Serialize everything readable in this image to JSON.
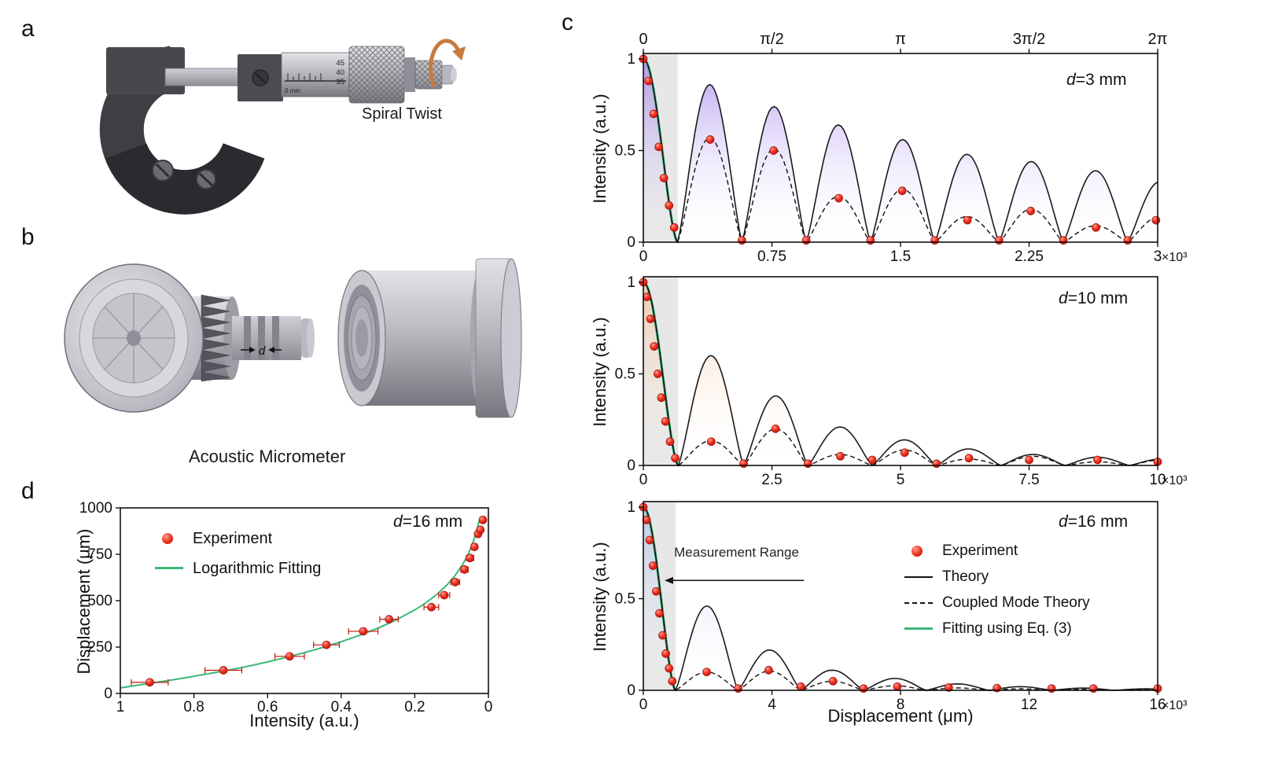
{
  "figure_bg": "#ffffff",
  "panel_a": {
    "label": "a",
    "caption": "Spiral Twist",
    "sleeve_markings": [
      "45",
      "40",
      "35"
    ],
    "sleeve_unit": "0 mm"
  },
  "panel_b": {
    "label": "b",
    "caption": "Acoustic Micrometer",
    "gap_label": "d"
  },
  "panel_c": {
    "label": "c",
    "ylabel": "Intensity (a.u.)",
    "xlabel": "Displacement (μm)"
  },
  "panel_d": {
    "label": "d",
    "ylabel": "Displacement (μm)",
    "xlabel": "Intensity (a.u.)"
  },
  "colors": {
    "experiment": "#ee2d1e",
    "theory": "#1a1a1a",
    "coupled": "#111111",
    "fit_green": "#3cb878",
    "grad_c1": "#8a63e8",
    "grad_c2": "#f5b98a",
    "grad_c3": "#9fb6e8",
    "shade": "#e7e7e7",
    "twist_arrow": "#c47c41"
  },
  "chart_data": [
    {
      "id": "c1",
      "type": "line",
      "annotation": {
        "var": "d",
        "rest": "=3 mm"
      },
      "xlim": [
        0,
        3
      ],
      "ylim": [
        0,
        1.03
      ],
      "x_ticks": [
        "0",
        "0.75",
        "1.5",
        "2.25",
        "3"
      ],
      "x_tick_vals": [
        0,
        0.75,
        1.5,
        2.25,
        3
      ],
      "x_scale": "×10³",
      "top_ticks": [
        "0",
        "π/2",
        "π",
        "3π/2",
        "2π"
      ],
      "top_tick_vals": [
        0,
        0.75,
        1.5,
        2.25,
        3
      ],
      "y_ticks": [
        "1",
        "0.5",
        "0"
      ],
      "y_tick_vals": [
        1,
        0.5,
        0
      ],
      "shade_end": 0.2,
      "first_zero": 0.2,
      "theory_humps": {
        "zeros": [
          0.2,
          0.575,
          0.95,
          1.325,
          1.7,
          2.075,
          2.45,
          2.825,
          3.2
        ],
        "peaks": [
          0.86,
          0.74,
          0.64,
          0.56,
          0.48,
          0.44,
          0.39,
          0.33
        ]
      },
      "coupled_humps": {
        "zeros": [
          0.2,
          0.575,
          0.95,
          1.325,
          1.7,
          2.075,
          2.45,
          2.825,
          3.2
        ],
        "peaks": [
          0.57,
          0.51,
          0.25,
          0.29,
          0.14,
          0.18,
          0.09,
          0.14
        ]
      },
      "experiment": [
        [
          0,
          1
        ],
        [
          0.03,
          0.88
        ],
        [
          0.06,
          0.7
        ],
        [
          0.09,
          0.52
        ],
        [
          0.12,
          0.35
        ],
        [
          0.15,
          0.2
        ],
        [
          0.18,
          0.08
        ],
        [
          0.39,
          0.56
        ],
        [
          0.575,
          0.01
        ],
        [
          0.76,
          0.5
        ],
        [
          0.95,
          0.01
        ],
        [
          1.14,
          0.24
        ],
        [
          1.325,
          0.01
        ],
        [
          1.51,
          0.28
        ],
        [
          1.7,
          0.01
        ],
        [
          1.89,
          0.12
        ],
        [
          2.075,
          0.01
        ],
        [
          2.26,
          0.17
        ],
        [
          2.45,
          0.01
        ],
        [
          2.64,
          0.08
        ],
        [
          2.825,
          0.01
        ],
        [
          2.99,
          0.12
        ]
      ]
    },
    {
      "id": "c2",
      "type": "line",
      "annotation": {
        "var": "d",
        "rest": "=10 mm"
      },
      "xlim": [
        0,
        10
      ],
      "ylim": [
        0,
        1.03
      ],
      "x_ticks": [
        "0",
        "2.5",
        "5",
        "7.5",
        "10"
      ],
      "x_tick_vals": [
        0,
        2.5,
        5,
        7.5,
        10
      ],
      "x_scale": "×10³",
      "y_ticks": [
        "1",
        "0.5",
        "0"
      ],
      "y_tick_vals": [
        1,
        0.5,
        0
      ],
      "shade_end": 0.68,
      "first_zero": 0.68,
      "theory_humps": {
        "zeros": [
          0.68,
          1.95,
          3.2,
          4.45,
          5.7,
          6.95,
          8.2,
          9.45,
          10.7
        ],
        "peaks": [
          0.6,
          0.38,
          0.21,
          0.14,
          0.09,
          0.06,
          0.045,
          0.035
        ]
      },
      "coupled_humps": {
        "zeros": [
          0.68,
          1.95,
          3.2,
          4.45,
          5.7,
          6.95,
          8.2,
          9.45,
          10.7
        ],
        "peaks": [
          0.135,
          0.2,
          0.06,
          0.085,
          0.035,
          0.05,
          0.02,
          0.03
        ]
      },
      "experiment": [
        [
          0,
          1
        ],
        [
          0.07,
          0.92
        ],
        [
          0.14,
          0.8
        ],
        [
          0.21,
          0.65
        ],
        [
          0.28,
          0.5
        ],
        [
          0.35,
          0.37
        ],
        [
          0.43,
          0.24
        ],
        [
          0.52,
          0.13
        ],
        [
          0.62,
          0.04
        ],
        [
          1.32,
          0.13
        ],
        [
          1.95,
          0.01
        ],
        [
          2.57,
          0.2
        ],
        [
          3.2,
          0.01
        ],
        [
          3.83,
          0.05
        ],
        [
          4.45,
          0.03
        ],
        [
          5.08,
          0.07
        ],
        [
          5.7,
          0.01
        ],
        [
          6.33,
          0.04
        ],
        [
          7.5,
          0.03
        ],
        [
          8.83,
          0.03
        ],
        [
          10,
          0.02
        ]
      ]
    },
    {
      "id": "c3",
      "type": "line",
      "annotation": {
        "var": "d",
        "rest": "=16 mm"
      },
      "xlabel": "Displacement (μm)",
      "xlim": [
        0,
        16
      ],
      "ylim": [
        0,
        1.03
      ],
      "x_ticks": [
        "0",
        "4",
        "8",
        "12",
        "16"
      ],
      "x_tick_vals": [
        0,
        4,
        8,
        12,
        16
      ],
      "x_scale": "×10³",
      "y_ticks": [
        "1",
        "0.5",
        "0"
      ],
      "y_tick_vals": [
        1,
        0.5,
        0
      ],
      "shade_end": 1.0,
      "first_zero": 1.0,
      "theory_humps": {
        "zeros": [
          1.0,
          2.95,
          4.9,
          6.85,
          8.8,
          10.75,
          12.7,
          14.65,
          16.6
        ],
        "peaks": [
          0.46,
          0.22,
          0.11,
          0.065,
          0.035,
          0.02,
          0.012,
          0.008
        ]
      },
      "coupled_humps": {
        "zeros": [
          1.0,
          2.95,
          4.9,
          6.85,
          8.8,
          10.75,
          12.7,
          14.65,
          16.6
        ],
        "peaks": [
          0.1,
          0.105,
          0.05,
          0.025,
          0.013,
          0.008,
          0.005,
          0.004
        ]
      },
      "experiment": [
        [
          0,
          1
        ],
        [
          0.1,
          0.93
        ],
        [
          0.2,
          0.82
        ],
        [
          0.3,
          0.68
        ],
        [
          0.4,
          0.54
        ],
        [
          0.5,
          0.42
        ],
        [
          0.6,
          0.3
        ],
        [
          0.7,
          0.2
        ],
        [
          0.8,
          0.12
        ],
        [
          0.9,
          0.05
        ],
        [
          1.97,
          0.1
        ],
        [
          2.95,
          0.01
        ],
        [
          3.9,
          0.11
        ],
        [
          4.9,
          0.02
        ],
        [
          5.9,
          0.05
        ],
        [
          6.85,
          0.01
        ],
        [
          7.9,
          0.02
        ],
        [
          9.5,
          0.015
        ],
        [
          11,
          0.012
        ],
        [
          12.7,
          0.01
        ],
        [
          14,
          0.01
        ],
        [
          16,
          0.01
        ]
      ],
      "legend": [
        {
          "label": "Experiment",
          "marker": "dot"
        },
        {
          "label": "Theory",
          "marker": "solid"
        },
        {
          "label": "Coupled Mode Theory",
          "marker": "dashed"
        },
        {
          "label": "Fitting using Eq. (3)",
          "marker": "green"
        }
      ],
      "range_annotation": {
        "text": "Measurement Range",
        "text_x": 2.9,
        "text_y": 0.73,
        "arrow_y": 0.6,
        "arrow_x0": 5.0,
        "arrow_x1": 0.66
      }
    },
    {
      "id": "d",
      "type": "scatter",
      "annotation": {
        "var": "d",
        "rest": "=16 mm"
      },
      "xlabel": "Intensity (a.u.)",
      "ylabel": "Displacement (μm)",
      "xlim": [
        1,
        0
      ],
      "ylim": [
        0,
        1000
      ],
      "x_ticks": [
        "1",
        "0.8",
        "0.6",
        "0.4",
        "0.2",
        "0"
      ],
      "x_tick_vals": [
        1,
        0.8,
        0.6,
        0.4,
        0.2,
        0
      ],
      "y_ticks": [
        "0",
        "250",
        "500",
        "750",
        "1000"
      ],
      "y_tick_vals": [
        0,
        250,
        500,
        750,
        1000
      ],
      "legend": [
        {
          "label": "Experiment",
          "marker": "dot"
        },
        {
          "label": "Logarithmic Fitting",
          "marker": "green"
        }
      ],
      "fit_curve": [
        [
          1,
          30
        ],
        [
          0.95,
          45
        ],
        [
          0.9,
          60
        ],
        [
          0.85,
          76
        ],
        [
          0.8,
          93
        ],
        [
          0.75,
          110
        ],
        [
          0.7,
          128
        ],
        [
          0.65,
          148
        ],
        [
          0.6,
          170
        ],
        [
          0.55,
          194
        ],
        [
          0.5,
          220
        ],
        [
          0.45,
          248
        ],
        [
          0.4,
          279
        ],
        [
          0.35,
          313
        ],
        [
          0.3,
          352
        ],
        [
          0.25,
          397
        ],
        [
          0.2,
          450
        ],
        [
          0.17,
          488
        ],
        [
          0.14,
          534
        ],
        [
          0.11,
          590
        ],
        [
          0.09,
          637
        ],
        [
          0.07,
          695
        ],
        [
          0.055,
          750
        ],
        [
          0.045,
          797
        ],
        [
          0.035,
          855
        ],
        [
          0.028,
          907
        ],
        [
          0.022,
          950
        ]
      ],
      "experiment": [
        [
          0.92,
          60,
          0.05
        ],
        [
          0.72,
          125,
          0.05
        ],
        [
          0.54,
          200,
          0.04
        ],
        [
          0.44,
          262,
          0.035
        ],
        [
          0.34,
          335,
          0.04
        ],
        [
          0.27,
          400,
          0.025
        ],
        [
          0.155,
          465,
          0.02
        ],
        [
          0.12,
          530,
          0.015
        ],
        [
          0.09,
          600,
          0.012
        ],
        [
          0.065,
          668,
          0.01
        ],
        [
          0.05,
          730,
          0.01
        ],
        [
          0.038,
          790,
          0.008
        ],
        [
          0.028,
          860,
          0.006
        ],
        [
          0.022,
          882,
          0.006
        ],
        [
          0.015,
          935,
          0.005
        ]
      ]
    }
  ]
}
